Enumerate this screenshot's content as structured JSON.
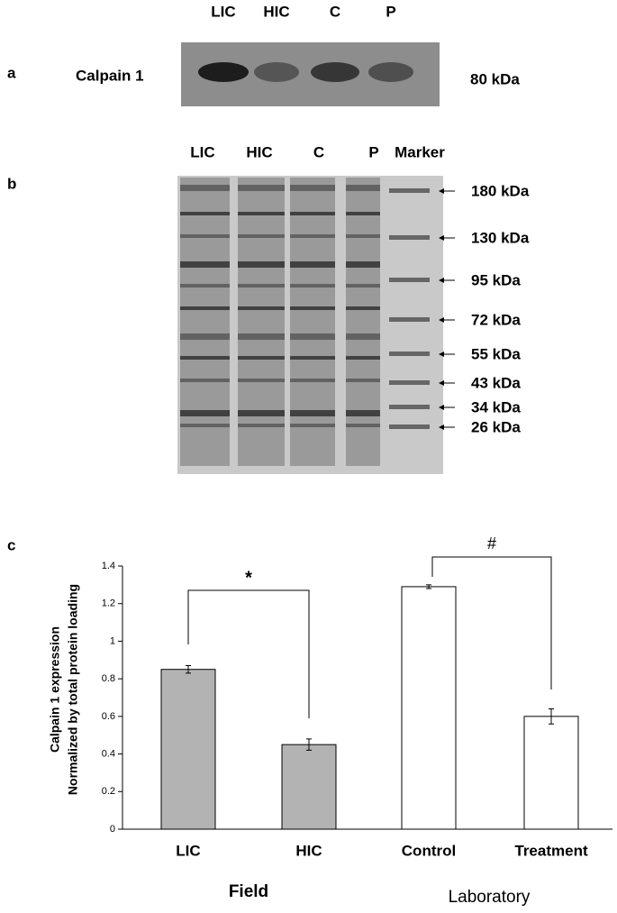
{
  "panel_a": {
    "label": "a",
    "lanes": [
      "LIC",
      "HIC",
      "C",
      "P"
    ],
    "protein": "Calpain 1",
    "size": "80 kDa"
  },
  "panel_b": {
    "label": "b",
    "lanes": [
      "LIC",
      "HIC",
      "C",
      "P",
      "Marker"
    ],
    "markers": [
      "180 kDa",
      "130 kDa",
      "95 kDa",
      "72 kDa",
      "55 kDa",
      "43 kDa",
      "34 kDa",
      "26 kDa"
    ]
  },
  "chart_data": {
    "type": "bar",
    "panel_label": "c",
    "y_label": [
      "Calpain 1 expression",
      "Normalized by total protein loading"
    ],
    "categories": [
      "LIC",
      "HIC",
      "Control",
      "Treatment"
    ],
    "values": [
      0.85,
      0.45,
      1.29,
      0.6
    ],
    "errors": [
      0.02,
      0.03,
      0.01,
      0.04
    ],
    "colors": [
      "#b3b3b3",
      "#b3b3b3",
      "#ffffff",
      "#ffffff"
    ],
    "group_labels": [
      "Field",
      "Laboratory"
    ],
    "annotations": [
      "*",
      "#"
    ],
    "ylim": [
      0,
      1.4
    ],
    "yticks": [
      0,
      0.2,
      0.4,
      0.6,
      0.8,
      1,
      1.2,
      1.4
    ]
  }
}
